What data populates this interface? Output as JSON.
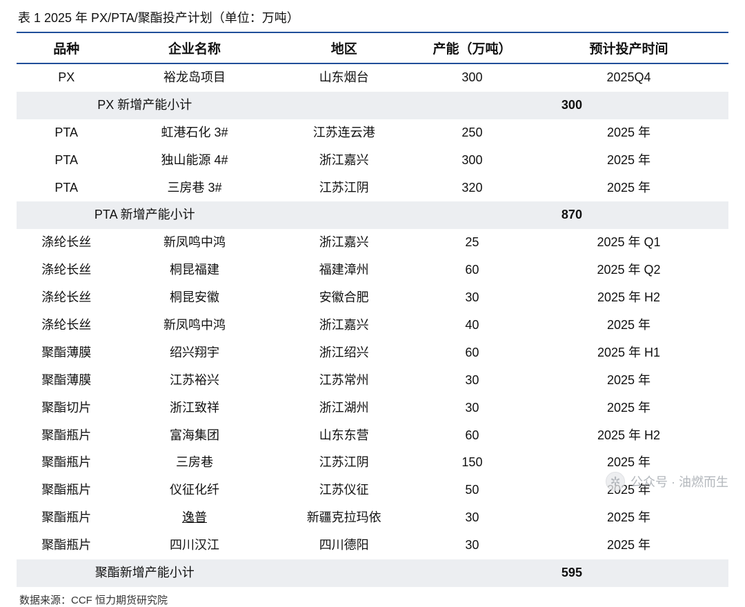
{
  "title": "表 1 2025 年 PX/PTA/聚酯投产计划（单位：万吨）",
  "columns": [
    "品种",
    "企业名称",
    "地区",
    "产能（万吨）",
    "预计投产时间"
  ],
  "column_widths_pct": [
    14,
    22,
    20,
    16,
    28
  ],
  "colors": {
    "rule": "#1f4e99",
    "subtotal_bg": "#eceef1",
    "text": "#111111",
    "background": "#ffffff",
    "watermark": "#9aa0a6"
  },
  "typography": {
    "title_fontsize_pt": 14,
    "header_fontsize_pt": 14,
    "body_fontsize_pt": 13,
    "source_fontsize_pt": 11
  },
  "table_type": "table",
  "rows": [
    {
      "type": "data",
      "cells": [
        "PX",
        "裕龙岛项目",
        "山东烟台",
        "300",
        "2025Q4"
      ]
    },
    {
      "type": "subtotal",
      "label": "PX 新增产能小计",
      "value": "300"
    },
    {
      "type": "data",
      "cells": [
        "PTA",
        "虹港石化 3#",
        "江苏连云港",
        "250",
        "2025 年"
      ]
    },
    {
      "type": "data",
      "cells": [
        "PTA",
        "独山能源 4#",
        "浙江嘉兴",
        "300",
        "2025 年"
      ]
    },
    {
      "type": "data",
      "cells": [
        "PTA",
        "三房巷 3#",
        "江苏江阴",
        "320",
        "2025 年"
      ]
    },
    {
      "type": "subtotal",
      "label": "PTA 新增产能小计",
      "value": "870"
    },
    {
      "type": "data",
      "cells": [
        "涤纶长丝",
        "新凤鸣中鸿",
        "浙江嘉兴",
        "25",
        "2025 年 Q1"
      ]
    },
    {
      "type": "data",
      "cells": [
        "涤纶长丝",
        "桐昆福建",
        "福建漳州",
        "60",
        "2025 年 Q2"
      ]
    },
    {
      "type": "data",
      "cells": [
        "涤纶长丝",
        "桐昆安徽",
        "安徽合肥",
        "30",
        "2025 年 H2"
      ]
    },
    {
      "type": "data",
      "cells": [
        "涤纶长丝",
        "新凤鸣中鸿",
        "浙江嘉兴",
        "40",
        "2025 年"
      ]
    },
    {
      "type": "data",
      "cells": [
        "聚酯薄膜",
        "绍兴翔宇",
        "浙江绍兴",
        "60",
        "2025 年 H1"
      ]
    },
    {
      "type": "data",
      "cells": [
        "聚酯薄膜",
        "江苏裕兴",
        "江苏常州",
        "30",
        "2025 年"
      ]
    },
    {
      "type": "data",
      "cells": [
        "聚酯切片",
        "浙江致祥",
        "浙江湖州",
        "30",
        "2025 年"
      ]
    },
    {
      "type": "data",
      "cells": [
        "聚酯瓶片",
        "富海集团",
        "山东东营",
        "60",
        "2025 年 H2"
      ]
    },
    {
      "type": "data",
      "cells": [
        "聚酯瓶片",
        "三房巷",
        "江苏江阴",
        "150",
        "2025 年"
      ]
    },
    {
      "type": "data",
      "cells": [
        "聚酯瓶片",
        "仪征化纤",
        "江苏仪征",
        "50",
        "2025 年"
      ]
    },
    {
      "type": "data",
      "cells": [
        "聚酯瓶片",
        "逸普",
        "新疆克拉玛依",
        "30",
        "2025 年"
      ],
      "underline_col": 1
    },
    {
      "type": "data",
      "cells": [
        "聚酯瓶片",
        "四川汉江",
        "四川德阳",
        "30",
        "2025 年"
      ]
    },
    {
      "type": "subtotal",
      "label": "聚酯新增产能小计",
      "value": "595"
    }
  ],
  "source": "数据来源：CCF 恒力期货研究院",
  "watermark": {
    "icon": "✲",
    "text": "公众号 · 油燃而生"
  }
}
